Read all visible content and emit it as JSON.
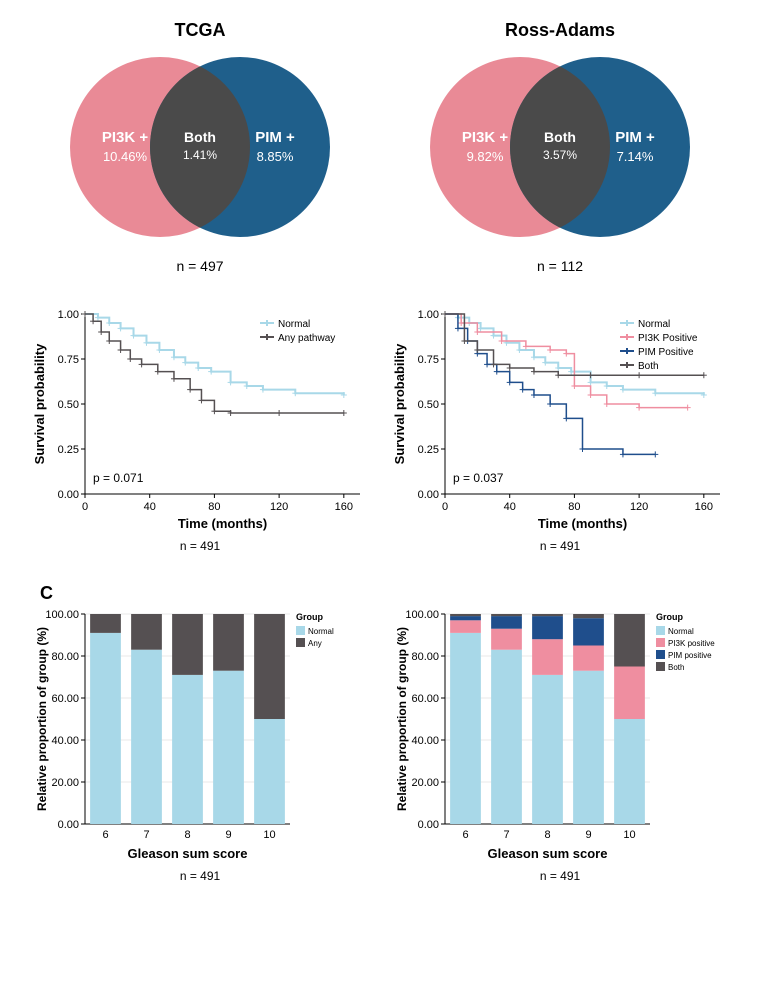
{
  "colors": {
    "pink": "#e98a96",
    "blue": "#1f5f8b",
    "overlap": "#4a4a4a",
    "lightblue": "#a8d8e8",
    "darkgray": "#555052",
    "black": "#000000",
    "series_pink": "#ef8ea0",
    "series_darkblue": "#1f4e8c",
    "series_lightblue": "#a8d8e8",
    "series_both": "#4a4a4a",
    "bg": "#ffffff",
    "grid": "#e8e8e8"
  },
  "vennA": {
    "title": "TCGA",
    "leftLabel": "PI3K +",
    "leftPct": "10.46%",
    "bothLabel": "Both",
    "bothPct": "1.41%",
    "rightLabel": "PIM +",
    "rightPct": "8.85%",
    "n": "n = 497"
  },
  "vennB": {
    "title": "Ross-Adams",
    "leftLabel": "PI3K +",
    "leftPct": "9.82%",
    "bothLabel": "Both",
    "bothPct": "3.57%",
    "rightLabel": "PIM +",
    "rightPct": "7.14%",
    "n": "n = 112"
  },
  "kmAxes": {
    "yLabel": "Survival probability",
    "xLabel": "Time (months)",
    "yTicks": [
      "0.00",
      "0.25",
      "0.50",
      "0.75",
      "1.00"
    ],
    "yVals": [
      0,
      0.25,
      0.5,
      0.75,
      1.0
    ]
  },
  "km1": {
    "xTicks": [
      0,
      40,
      80,
      120,
      160
    ],
    "xMax": 170,
    "p": "p = 0.071",
    "n": "n = 491",
    "legend": [
      "Normal",
      "Any pathway"
    ],
    "legendColors": [
      "#a8d8e8",
      "#555052"
    ],
    "normal": [
      [
        0,
        1.0
      ],
      [
        8,
        0.98
      ],
      [
        15,
        0.95
      ],
      [
        22,
        0.92
      ],
      [
        30,
        0.88
      ],
      [
        38,
        0.84
      ],
      [
        46,
        0.8
      ],
      [
        55,
        0.76
      ],
      [
        62,
        0.73
      ],
      [
        70,
        0.7
      ],
      [
        78,
        0.68
      ],
      [
        90,
        0.62
      ],
      [
        100,
        0.6
      ],
      [
        110,
        0.58
      ],
      [
        130,
        0.56
      ],
      [
        160,
        0.55
      ]
    ],
    "any": [
      [
        0,
        1.0
      ],
      [
        5,
        0.96
      ],
      [
        10,
        0.9
      ],
      [
        15,
        0.85
      ],
      [
        22,
        0.8
      ],
      [
        28,
        0.75
      ],
      [
        35,
        0.72
      ],
      [
        45,
        0.68
      ],
      [
        55,
        0.64
      ],
      [
        65,
        0.58
      ],
      [
        72,
        0.52
      ],
      [
        80,
        0.46
      ],
      [
        90,
        0.45
      ],
      [
        120,
        0.45
      ],
      [
        160,
        0.45
      ]
    ]
  },
  "km2": {
    "xTicks": [
      0,
      40,
      80,
      120,
      160
    ],
    "xMax": 170,
    "p": "p = 0.037",
    "n": "n = 491",
    "legend": [
      "Normal",
      "PI3K Positive",
      "PIM Positive",
      "Both"
    ],
    "legendColors": [
      "#a8d8e8",
      "#ef8ea0",
      "#1f4e8c",
      "#555052"
    ],
    "normal": [
      [
        0,
        1.0
      ],
      [
        8,
        0.98
      ],
      [
        15,
        0.95
      ],
      [
        22,
        0.92
      ],
      [
        30,
        0.88
      ],
      [
        38,
        0.84
      ],
      [
        46,
        0.8
      ],
      [
        55,
        0.76
      ],
      [
        62,
        0.73
      ],
      [
        70,
        0.7
      ],
      [
        78,
        0.68
      ],
      [
        90,
        0.62
      ],
      [
        100,
        0.6
      ],
      [
        110,
        0.58
      ],
      [
        130,
        0.56
      ],
      [
        160,
        0.55
      ]
    ],
    "pi3k": [
      [
        0,
        1.0
      ],
      [
        10,
        0.95
      ],
      [
        20,
        0.9
      ],
      [
        35,
        0.85
      ],
      [
        50,
        0.82
      ],
      [
        65,
        0.8
      ],
      [
        75,
        0.78
      ],
      [
        80,
        0.6
      ],
      [
        90,
        0.55
      ],
      [
        100,
        0.5
      ],
      [
        120,
        0.48
      ],
      [
        150,
        0.48
      ]
    ],
    "pim": [
      [
        0,
        1.0
      ],
      [
        8,
        0.92
      ],
      [
        14,
        0.85
      ],
      [
        20,
        0.78
      ],
      [
        26,
        0.72
      ],
      [
        32,
        0.68
      ],
      [
        40,
        0.62
      ],
      [
        48,
        0.58
      ],
      [
        55,
        0.55
      ],
      [
        65,
        0.5
      ],
      [
        75,
        0.42
      ],
      [
        85,
        0.25
      ],
      [
        110,
        0.22
      ],
      [
        130,
        0.22
      ]
    ],
    "both": [
      [
        0,
        1.0
      ],
      [
        12,
        0.85
      ],
      [
        20,
        0.8
      ],
      [
        30,
        0.72
      ],
      [
        40,
        0.7
      ],
      [
        55,
        0.68
      ],
      [
        70,
        0.66
      ],
      [
        90,
        0.66
      ],
      [
        120,
        0.66
      ],
      [
        160,
        0.66
      ]
    ]
  },
  "panelC": {
    "label": "C"
  },
  "barAxes": {
    "yLabel": "Relative proportion of group (%)",
    "xLabel": "Gleason sum score",
    "yTicks": [
      0,
      20,
      40,
      60,
      80,
      100
    ],
    "categories": [
      "6",
      "7",
      "8",
      "9",
      "10"
    ]
  },
  "bar1": {
    "n": "n = 491",
    "legendTitle": "Group",
    "legend": [
      "Normal",
      "Any"
    ],
    "legendColors": [
      "#a8d8e8",
      "#555052"
    ],
    "normal": [
      91,
      83,
      71,
      73,
      50
    ],
    "any": [
      9,
      17,
      29,
      27,
      50
    ]
  },
  "bar2": {
    "n": "n = 491",
    "legendTitle": "Group",
    "legend": [
      "Normal",
      "PI3K positive",
      "PIM positive",
      "Both"
    ],
    "legendColors": [
      "#a8d8e8",
      "#ef8ea0",
      "#1f4e8c",
      "#555052"
    ],
    "stacks": [
      {
        "normal": 91,
        "pi3k": 6,
        "pim": 2,
        "both": 1
      },
      {
        "normal": 83,
        "pi3k": 10,
        "pim": 6,
        "both": 1
      },
      {
        "normal": 71,
        "pi3k": 17,
        "pim": 11,
        "both": 1
      },
      {
        "normal": 73,
        "pi3k": 12,
        "pim": 13,
        "both": 2
      },
      {
        "normal": 50,
        "pi3k": 25,
        "pim": 0,
        "both": 25
      }
    ]
  }
}
